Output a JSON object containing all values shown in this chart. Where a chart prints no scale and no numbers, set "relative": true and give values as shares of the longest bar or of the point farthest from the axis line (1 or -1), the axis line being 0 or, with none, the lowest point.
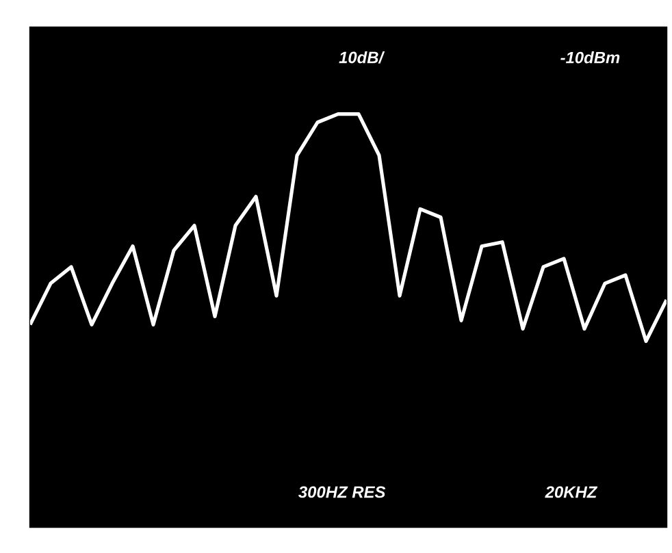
{
  "chart_data": {
    "type": "line",
    "relative": true,
    "categories": [
      null,
      null,
      null,
      null,
      null,
      null,
      null,
      null,
      null,
      null,
      null,
      null,
      null,
      null,
      null,
      null,
      null,
      null,
      null,
      null,
      null,
      null,
      null,
      null,
      null,
      null,
      null,
      null,
      null,
      null,
      null,
      null
    ],
    "series": [
      {
        "color": "#ffffff",
        "values": [
          0.49,
          0.59,
          0.63,
          0.49,
          0.59,
          0.68,
          0.49,
          0.67,
          0.73,
          0.51,
          0.73,
          0.8,
          0.56,
          0.9,
          0.98,
          1.0,
          1.0,
          0.9,
          0.56,
          0.77,
          0.75,
          0.5,
          0.68,
          0.69,
          0.48,
          0.63,
          0.65,
          0.48,
          0.59,
          0.61,
          0.45,
          0.55
        ]
      }
    ],
    "annotations": [
      "10dB/",
      "-10dBm",
      "300HZ RES",
      "20KHZ"
    ]
  }
}
